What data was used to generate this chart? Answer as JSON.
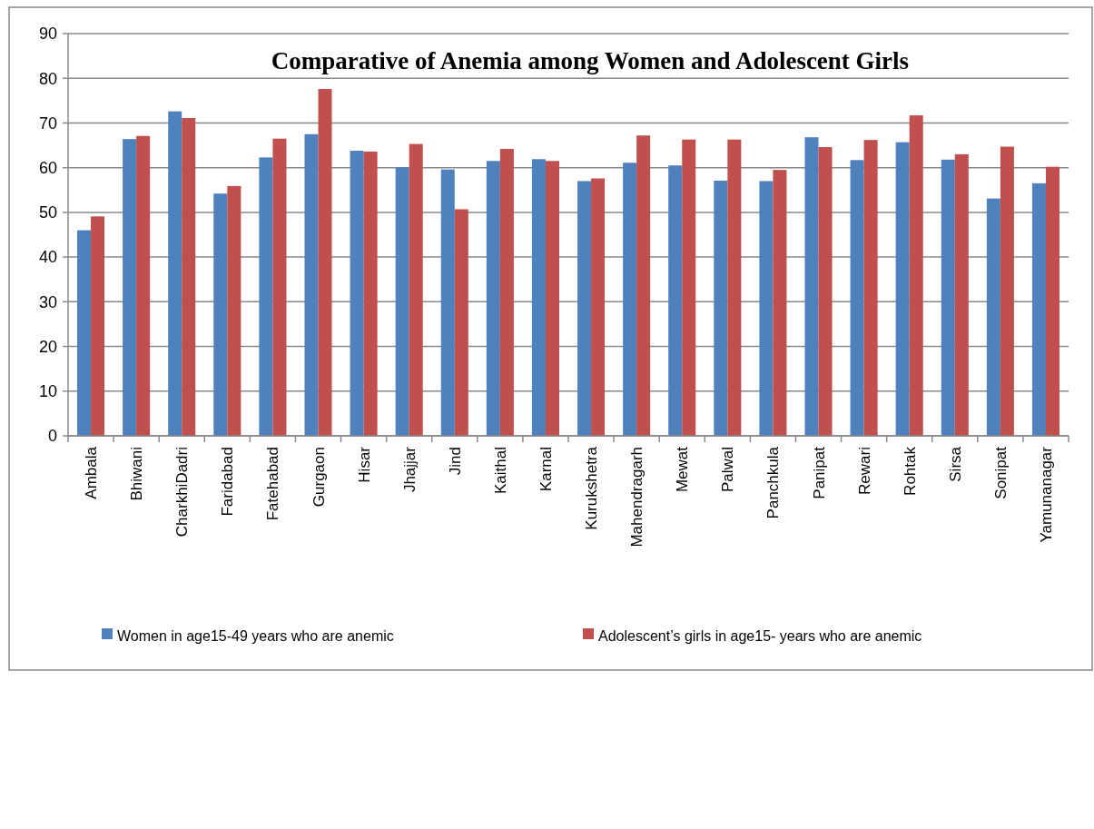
{
  "chart_data": {
    "type": "bar",
    "title": "Comparative of Anemia among Women and Adolescent Girls",
    "categories": [
      "Ambala",
      "Bhiwani",
      "CharkhiDadri",
      "Faridabad",
      "Fatehabad",
      "Gurgaon",
      "Hisar",
      "Jhajjar",
      "Jind",
      "Kaithal",
      "Karnal",
      "Kurukshetra",
      "Mahendragarh",
      "Mewat",
      "Palwal",
      "Panchkula",
      "Panipat",
      "Rewari",
      "Rohtak",
      "Sirsa",
      "Sonipat",
      "Yamunanagar"
    ],
    "series": [
      {
        "name": "Women in age15-49 years who are anemic",
        "color": "#4f81bd",
        "values": [
          46.0,
          66.4,
          72.6,
          54.2,
          62.3,
          67.5,
          63.8,
          60.1,
          59.6,
          61.5,
          61.9,
          57.0,
          61.1,
          60.5,
          57.1,
          57.0,
          66.8,
          61.7,
          65.7,
          61.8,
          53.1,
          56.5
        ]
      },
      {
        "name": "Adolescent’s girls in age15- years who are anemic",
        "color": "#c0504d",
        "values": [
          49.1,
          67.1,
          71.1,
          55.9,
          66.5,
          77.6,
          63.6,
          65.3,
          50.7,
          64.2,
          61.5,
          57.6,
          67.2,
          66.3,
          66.3,
          59.5,
          64.6,
          66.2,
          71.7,
          63.0,
          64.7,
          60.2
        ]
      }
    ],
    "ylim": [
      0,
      90
    ],
    "yticks": [
      0,
      10,
      20,
      30,
      40,
      50,
      60,
      70,
      80,
      90
    ],
    "grid": "y",
    "legend": "bottom"
  }
}
